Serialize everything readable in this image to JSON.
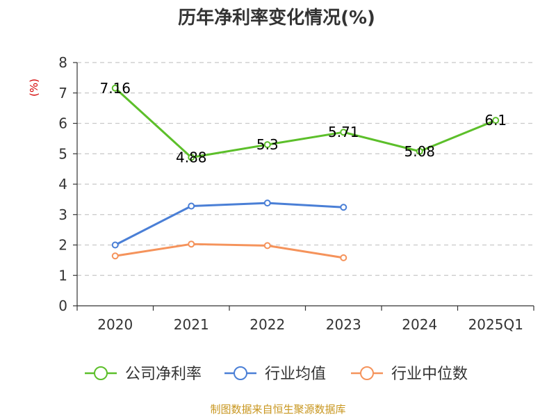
{
  "chart_data": {
    "type": "line",
    "title": "历年净利率变化情况(%)",
    "ylabel": "(%)",
    "xlabel": "",
    "ylim": [
      0,
      8
    ],
    "yticks": [
      "0",
      "1",
      "2",
      "3",
      "4",
      "5",
      "6",
      "7",
      "8"
    ],
    "categories": [
      "2020",
      "2021",
      "2022",
      "2023",
      "2024",
      "2025Q1"
    ],
    "grid": true,
    "legend_position": "bottom",
    "series": [
      {
        "name": "公司净利率",
        "color": "#5cbf2a",
        "values": [
          7.16,
          4.88,
          5.3,
          5.71,
          5.08,
          6.1
        ],
        "labels": [
          "7.16",
          "4.88",
          "5.3",
          "5.71",
          "5.08",
          "6.1"
        ]
      },
      {
        "name": "行业均值",
        "color": "#4a7fd6",
        "values": [
          2.0,
          3.28,
          3.38,
          3.24,
          null,
          null
        ]
      },
      {
        "name": "行业中位数",
        "color": "#f5935b",
        "values": [
          1.64,
          2.03,
          1.98,
          1.58,
          null,
          null
        ]
      }
    ],
    "source": "制图数据来自恒生聚源数据库"
  }
}
